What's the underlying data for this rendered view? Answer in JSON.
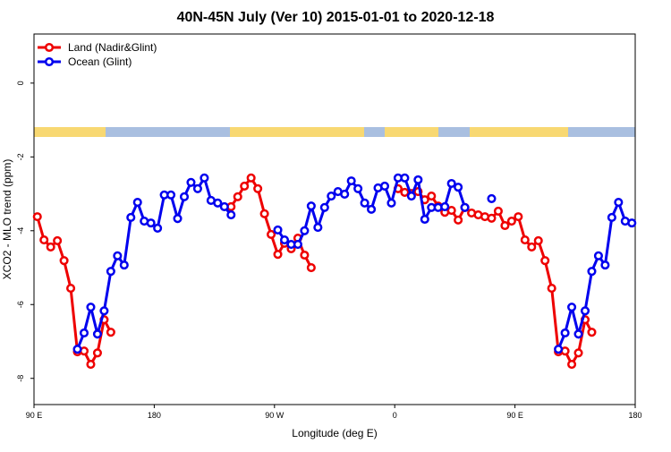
{
  "chart_data": {
    "type": "line",
    "title": "40N-45N July (Ver 10)   2015-01-01 to 2020-12-18",
    "xlabel": "Longitude (deg E)",
    "ylabel": "XCO2 - MLO trend (ppm)",
    "xlim": [
      90,
      540
    ],
    "ylim": [
      -8.71,
      1.33
    ],
    "xticks": [
      {
        "value": 90,
        "label": "90 E"
      },
      {
        "value": 180,
        "label": "180"
      },
      {
        "value": 270,
        "label": "90 W"
      },
      {
        "value": 360,
        "label": "0"
      },
      {
        "value": 450,
        "label": "90 E"
      },
      {
        "value": 540,
        "label": "180"
      }
    ],
    "yticks": [
      0,
      -2,
      -4,
      -6,
      -8
    ],
    "legend": "top-left",
    "x": [
      92.5,
      97.5,
      102.5,
      107.5,
      112.5,
      117.5,
      122.5,
      127.5,
      132.5,
      137.5,
      142.5,
      147.5,
      152.5,
      157.5,
      162.5,
      167.5,
      172.5,
      177.5,
      182.5,
      187.5,
      192.5,
      197.5,
      202.5,
      207.5,
      212.5,
      217.5,
      222.5,
      227.5,
      232.5,
      237.5,
      242.5,
      247.5,
      252.5,
      257.5,
      262.5,
      267.5,
      272.5,
      277.5,
      282.5,
      287.5,
      292.5,
      297.5,
      302.5,
      307.5,
      312.5,
      317.5,
      322.5,
      327.5,
      332.5,
      337.5,
      342.5,
      347.5,
      352.5,
      357.5,
      362.5,
      367.5,
      372.5,
      377.5,
      382.5,
      387.5,
      392.5,
      397.5,
      402.5,
      407.5,
      412.5,
      417.5,
      422.5,
      427.5,
      432.5,
      437.5,
      442.5,
      447.5,
      452.5,
      457.5,
      462.5,
      467.5,
      472.5,
      477.5,
      482.5,
      487.5,
      492.5,
      497.5,
      502.5,
      507.5,
      512.5,
      517.5,
      522.5,
      527.5,
      532.5,
      537.5
    ],
    "series": [
      {
        "name": "Land (Nadir&Glint)",
        "color": "#ee0000",
        "values": [
          -3.62,
          -4.25,
          -4.44,
          -4.27,
          -4.81,
          -5.56,
          -7.28,
          -7.26,
          -7.62,
          -7.31,
          -6.41,
          -6.75,
          null,
          null,
          null,
          null,
          null,
          null,
          null,
          null,
          null,
          null,
          null,
          null,
          null,
          null,
          null,
          null,
          null,
          -3.35,
          -3.08,
          -2.79,
          -2.57,
          -2.86,
          -3.54,
          -4.1,
          -4.64,
          -4.34,
          -4.49,
          -4.2,
          -4.66,
          -5.0,
          null,
          null,
          null,
          null,
          null,
          null,
          null,
          null,
          null,
          null,
          null,
          null,
          -2.86,
          -2.96,
          -2.99,
          -2.94,
          -3.16,
          -3.06,
          -3.33,
          -3.5,
          -3.45,
          -3.71,
          -3.37,
          -3.52,
          -3.57,
          -3.62,
          -3.66,
          -3.47,
          -3.86,
          -3.74,
          -3.62,
          -4.25,
          -4.44,
          -4.27,
          -4.81,
          -5.56,
          -7.28,
          -7.26,
          -7.62,
          -7.31,
          -6.41,
          -6.75,
          null,
          null,
          null,
          null,
          null,
          null
        ]
      },
      {
        "name": "Ocean (Glint)",
        "color": "#0000ee",
        "values": [
          null,
          null,
          null,
          null,
          null,
          null,
          -7.21,
          -6.77,
          -6.07,
          -6.8,
          -6.17,
          -5.1,
          -4.68,
          -4.93,
          -3.64,
          -3.23,
          -3.74,
          -3.79,
          -3.93,
          -3.03,
          -3.03,
          -3.67,
          -3.08,
          -2.69,
          -2.86,
          -2.57,
          -3.18,
          -3.25,
          -3.35,
          -3.57,
          null,
          null,
          null,
          null,
          null,
          null,
          -3.98,
          -4.25,
          -4.37,
          -4.37,
          -4.0,
          -3.33,
          -3.91,
          -3.37,
          -3.06,
          -2.94,
          -3.01,
          -2.65,
          -2.86,
          -3.25,
          -3.42,
          -2.84,
          -2.79,
          -3.25,
          -2.57,
          -2.57,
          -3.06,
          -2.62,
          -3.69,
          -3.37,
          -3.37,
          -3.35,
          -2.72,
          -2.82,
          -3.37,
          null,
          null,
          null,
          -3.13,
          null,
          null,
          null,
          null,
          null,
          null,
          null,
          null,
          null,
          -7.21,
          -6.77,
          -6.07,
          -6.8,
          -6.17,
          -5.1,
          -4.68,
          -4.93,
          -3.64,
          -3.23,
          -3.74,
          -3.79
        ]
      }
    ]
  }
}
